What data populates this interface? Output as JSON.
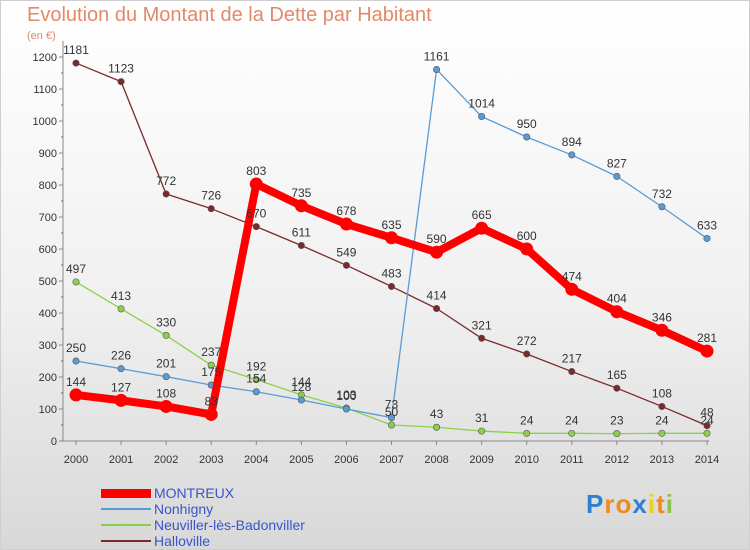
{
  "title": "Evolution du Montant de la Dette par Habitant",
  "unit": "(en €)",
  "logo": {
    "letters": [
      "P",
      "r",
      "o",
      "x",
      "i",
      "t",
      "i"
    ],
    "colors": [
      "#2f7fd0",
      "#f08a1d",
      "#f08a1d",
      "#2f7fd0",
      "#e8d21a",
      "#f08a1d",
      "#8bc34a"
    ]
  },
  "chart_data": {
    "type": "line",
    "xlabel": "",
    "ylabel": "",
    "x": [
      "2000",
      "2001",
      "2002",
      "2003",
      "2004",
      "2005",
      "2006",
      "2007",
      "2008",
      "2009",
      "2010",
      "2011",
      "2012",
      "2013",
      "2014"
    ],
    "yticks": [
      "0",
      "100",
      "200",
      "300",
      "400",
      "500",
      "600",
      "700",
      "800",
      "900",
      "1000",
      "1100",
      "1200"
    ],
    "ylim": [
      0,
      1250
    ],
    "grid": false,
    "legend": "bottom-left",
    "series": [
      {
        "name": "MONTREUX",
        "color": "#ff0000",
        "values": [
          144,
          127,
          108,
          83,
          803,
          735,
          678,
          635,
          590,
          665,
          600,
          474,
          404,
          346,
          281
        ],
        "labels": [
          "144",
          "127",
          "108",
          "83",
          "803",
          "735",
          "678",
          "635",
          "590",
          "665",
          "600",
          "474",
          "404",
          "346",
          "281"
        ]
      },
      {
        "name": "Nonhigny",
        "color": "#5b9bd5",
        "values": [
          250,
          226,
          201,
          175,
          154,
          128,
          100,
          73,
          1161,
          1014,
          950,
          894,
          827,
          732,
          633
        ],
        "labels": [
          "250",
          "226",
          "201",
          "175",
          "154",
          "128",
          "100",
          "73",
          "1161",
          "1014",
          "950",
          "894",
          "827",
          "732",
          "633"
        ]
      },
      {
        "name": "Neuviller-lès-Badonviller",
        "color": "#8bd14a",
        "values": [
          497,
          413,
          330,
          237,
          192,
          144,
          103,
          50,
          43,
          31,
          24,
          24,
          23,
          24,
          24
        ],
        "labels": [
          "497",
          "413",
          "330",
          "237",
          "192",
          "144",
          "103",
          "50",
          "43",
          "31",
          "24",
          "24",
          "23",
          "24",
          "24"
        ]
      },
      {
        "name": "Halloville",
        "color": "#7a2a2a",
        "values": [
          1181,
          1123,
          772,
          726,
          670,
          611,
          549,
          483,
          414,
          321,
          272,
          217,
          165,
          108,
          48
        ],
        "labels": [
          "1181",
          "1123",
          "772",
          "726",
          "670",
          "611",
          "549",
          "483",
          "414",
          "321",
          "272",
          "217",
          "165",
          "108",
          "48"
        ]
      }
    ]
  }
}
